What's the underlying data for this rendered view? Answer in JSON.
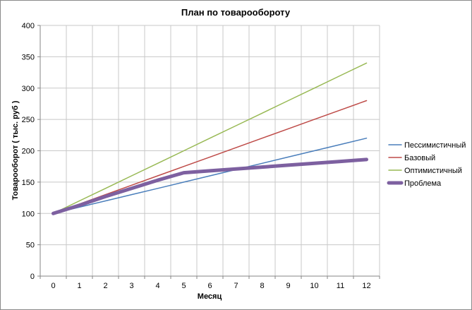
{
  "chart_data": {
    "type": "line",
    "title": "План по товарообороту",
    "xlabel": "Месяц",
    "ylabel": "Товарооборот  ( тыс. руб )",
    "categories": [
      "0",
      "1",
      "2",
      "3",
      "4",
      "5",
      "6",
      "7",
      "8",
      "9",
      "10",
      "11",
      "12"
    ],
    "ylim": [
      0,
      400
    ],
    "yticks": [
      0,
      50,
      100,
      150,
      200,
      250,
      300,
      350,
      400
    ],
    "grid": true,
    "legend_position": "right",
    "series": [
      {
        "name": "Пессимистичный",
        "color": "#4a7ebb",
        "width": 1.5,
        "values": [
          100,
          110,
          120,
          130,
          140,
          150,
          160,
          170,
          180,
          190,
          200,
          210,
          220
        ]
      },
      {
        "name": "Базовый",
        "color": "#be4b48",
        "width": 1.5,
        "values": [
          100,
          115,
          130,
          145,
          160,
          175,
          190,
          205,
          220,
          235,
          250,
          265,
          280
        ]
      },
      {
        "name": "Оптимистичный",
        "color": "#98b954",
        "width": 1.5,
        "values": [
          100,
          120,
          140,
          160,
          180,
          200,
          220,
          240,
          260,
          280,
          300,
          320,
          340
        ]
      },
      {
        "name": "Проблема",
        "color": "#7d60a0",
        "width": 5,
        "values": [
          100,
          113,
          127,
          140,
          153,
          165,
          168,
          171,
          174,
          177,
          180,
          183,
          186
        ]
      }
    ]
  }
}
